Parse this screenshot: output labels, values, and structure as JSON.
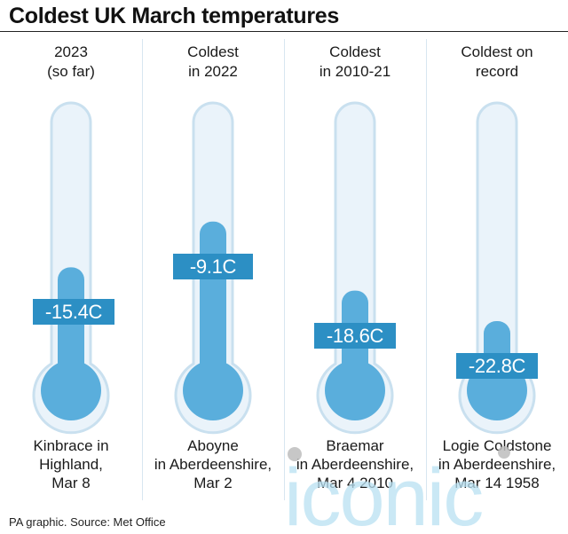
{
  "title": "Coldest UK March temperatures",
  "source": "PA graphic. Source: Met Office",
  "watermark": "iconic",
  "colors": {
    "tube_outline": "#c9e0ef",
    "tube_fill": "#eaf3fa",
    "liquid": "#5aaedc",
    "liquid_dark": "#3f9bcf",
    "label_bg": "#2c8fc4",
    "divider": "#d8e6f0"
  },
  "chart_data": {
    "type": "bar",
    "unit": "C",
    "categories": [
      "2023 (so far)",
      "Coldest in 2022",
      "Coldest in 2010-21",
      "Coldest on record"
    ],
    "values": [
      -15.4,
      -9.1,
      -18.6,
      -22.8
    ],
    "value_labels": [
      "-15.4C",
      "-9.1C",
      "-18.6C",
      "-22.8C"
    ],
    "headers": [
      [
        "2023",
        "(so far)"
      ],
      [
        "Coldest",
        "in 2022"
      ],
      [
        "Coldest",
        "in 2010-21"
      ],
      [
        "Coldest on",
        "record"
      ]
    ],
    "locations": [
      [
        "Kinbrace in",
        "Highland,",
        "Mar 8"
      ],
      [
        "Aboyne",
        "in Aberdeenshire,",
        "Mar 2"
      ],
      [
        "Braemar",
        "in Aberdeenshire,",
        "Mar 4 2010"
      ],
      [
        "Logie Coldstone",
        "in Aberdeenshire,",
        "Mar 14 1958"
      ]
    ],
    "ylim": [
      -30,
      -4
    ]
  }
}
